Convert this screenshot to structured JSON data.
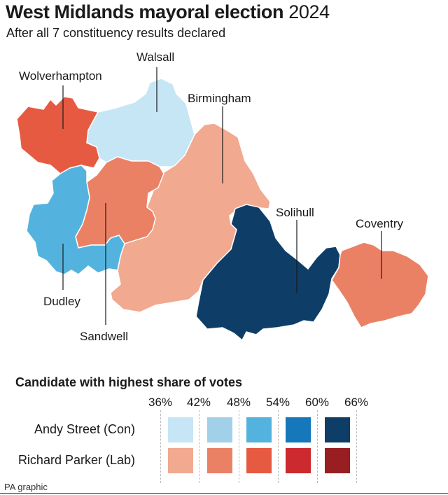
{
  "title": {
    "bold": "West Midlands mayoral election",
    "light": "2024"
  },
  "subtitle": "After all 7 constituency results declared",
  "regions": [
    {
      "name": "Walsall",
      "color": "#c6e6f5",
      "winner": "Andy Street (Con)",
      "band": "36%"
    },
    {
      "name": "Wolverhampton",
      "color": "#e65a42",
      "winner": "Richard Parker (Lab)",
      "band": "48%"
    },
    {
      "name": "Birmingham",
      "color": "#f1a990",
      "winner": "Richard Parker (Lab)",
      "band": "36%"
    },
    {
      "name": "Sandwell",
      "color": "#ea8165",
      "winner": "Richard Parker (Lab)",
      "band": "42%"
    },
    {
      "name": "Dudley",
      "color": "#54b3de",
      "winner": "Andy Street (Con)",
      "band": "48%"
    },
    {
      "name": "Solihull",
      "color": "#0e3e68",
      "winner": "Andy Street (Con)",
      "band": "60%"
    },
    {
      "name": "Coventry",
      "color": "#ea8165",
      "winner": "Richard Parker (Lab)",
      "band": "42%"
    }
  ],
  "legend": {
    "title": "Candidate with highest share of votes",
    "ticks": [
      "36%",
      "42%",
      "48%",
      "54%",
      "60%",
      "66%"
    ],
    "rows": [
      {
        "label": "Andy Street (Con)",
        "colors": [
          "#c6e6f5",
          "#a2d0e8",
          "#54b3de",
          "#1478ba",
          "#0e3e68"
        ]
      },
      {
        "label": "Richard Parker (Lab)",
        "colors": [
          "#f1a990",
          "#ea8165",
          "#e65a42",
          "#cc2a2e",
          "#981e22"
        ]
      }
    ]
  },
  "credit": "PA graphic"
}
